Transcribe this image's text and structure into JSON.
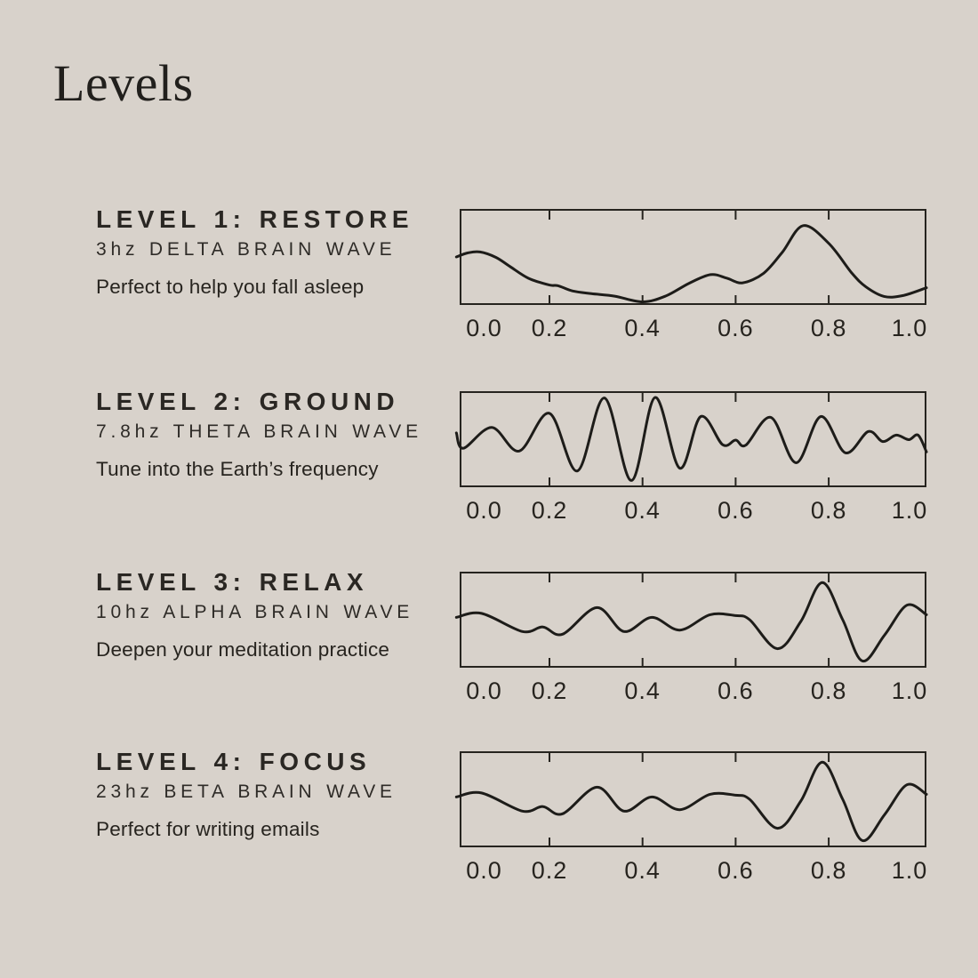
{
  "page": {
    "title": "Levels"
  },
  "theme": {
    "background": "#d8d2cb",
    "ink": "#26231f",
    "wave_color": "#1d1c19",
    "border_color": "#26241f"
  },
  "levels": [
    {
      "title": "LEVEL 1: RESTORE",
      "subtitle": "3hz DELTA BRAIN WAVE",
      "tagline": "Perfect to help you fall asleep"
    },
    {
      "title": "LEVEL 2: GROUND",
      "subtitle": "7.8hz THETA BRAIN WAVE",
      "tagline": "Tune into the Earth’s frequency"
    },
    {
      "title": "LEVEL 3: RELAX",
      "subtitle": "10hz ALPHA BRAIN WAVE",
      "tagline": "Deepen your meditation practice"
    },
    {
      "title": "LEVEL 4: FOCUS",
      "subtitle": "23hz BETA BRAIN WAVE",
      "tagline": "Perfect for writing emails"
    }
  ],
  "chart_data": [
    {
      "type": "line",
      "name": "delta-brain-wave",
      "frequency_label": "3hz",
      "xlim": [
        0,
        1.01
      ],
      "ylim": [
        0,
        1
      ],
      "grid": false,
      "tick_marks": [
        0.2,
        0.4,
        0.6,
        0.8
      ],
      "tick_label_values": [
        0.0,
        0.2,
        0.4,
        0.6,
        0.8,
        1.0
      ],
      "tick_labels": [
        "0.0",
        "0.2",
        "0.4",
        "0.6",
        "0.8",
        "1.0"
      ],
      "points": {
        "x": [
          0.0,
          0.025,
          0.051,
          0.085,
          0.115,
          0.155,
          0.2,
          0.218,
          0.25,
          0.29,
          0.34,
          0.4,
          0.45,
          0.5,
          0.546,
          0.58,
          0.615,
          0.66,
          0.7,
          0.745,
          0.8,
          0.85,
          0.88,
          0.919,
          0.96,
          1.01
        ],
        "y": [
          0.5,
          0.545,
          0.555,
          0.495,
          0.395,
          0.265,
          0.19,
          0.183,
          0.125,
          0.095,
          0.068,
          0.005,
          0.07,
          0.21,
          0.305,
          0.268,
          0.215,
          0.32,
          0.55,
          0.845,
          0.65,
          0.32,
          0.17,
          0.065,
          0.075,
          0.16
        ]
      }
    },
    {
      "type": "line",
      "name": "theta-brain-wave",
      "frequency_label": "7.8hz",
      "xlim": [
        0,
        1.01
      ],
      "ylim": [
        0,
        1
      ],
      "grid": false,
      "tick_marks": [
        0.2,
        0.4,
        0.6,
        0.8
      ],
      "tick_label_values": [
        0.0,
        0.2,
        0.4,
        0.6,
        0.8,
        1.0
      ],
      "tick_labels": [
        "0.0",
        "0.2",
        "0.4",
        "0.6",
        "0.8",
        "1.0"
      ],
      "points": {
        "x": [
          0.0,
          0.015,
          0.076,
          0.135,
          0.2,
          0.26,
          0.318,
          0.376,
          0.427,
          0.48,
          0.525,
          0.572,
          0.6,
          0.622,
          0.676,
          0.73,
          0.783,
          0.836,
          0.885,
          0.916,
          0.945,
          0.972,
          0.992,
          1.01
        ],
        "y": [
          0.57,
          0.4,
          0.63,
          0.37,
          0.785,
          0.15,
          0.955,
          0.045,
          0.96,
          0.18,
          0.75,
          0.44,
          0.49,
          0.435,
          0.74,
          0.24,
          0.75,
          0.35,
          0.585,
          0.475,
          0.545,
          0.495,
          0.545,
          0.36
        ]
      }
    },
    {
      "type": "line",
      "name": "alpha-brain-wave",
      "frequency_label": "10hz",
      "xlim": [
        0,
        1.01
      ],
      "ylim": [
        0,
        1
      ],
      "grid": false,
      "tick_marks": [
        0.2,
        0.4,
        0.6,
        0.8
      ],
      "tick_label_values": [
        0.0,
        0.2,
        0.4,
        0.6,
        0.8,
        1.0
      ],
      "tick_labels": [
        "0.0",
        "0.2",
        "0.4",
        "0.6",
        "0.8",
        "1.0"
      ],
      "points": {
        "x": [
          0.0,
          0.054,
          0.142,
          0.186,
          0.228,
          0.302,
          0.36,
          0.42,
          0.48,
          0.545,
          0.6,
          0.63,
          0.69,
          0.74,
          0.786,
          0.83,
          0.872,
          0.92,
          0.968,
          1.01
        ],
        "y": [
          0.525,
          0.57,
          0.37,
          0.42,
          0.34,
          0.633,
          0.37,
          0.525,
          0.385,
          0.555,
          0.545,
          0.5,
          0.18,
          0.48,
          0.91,
          0.5,
          0.045,
          0.33,
          0.66,
          0.555
        ]
      }
    },
    {
      "type": "line",
      "name": "beta-brain-wave",
      "frequency_label": "23hz",
      "xlim": [
        0,
        1.01
      ],
      "ylim": [
        0,
        1
      ],
      "grid": false,
      "tick_marks": [
        0.2,
        0.4,
        0.6,
        0.8
      ],
      "tick_label_values": [
        0.0,
        0.2,
        0.4,
        0.6,
        0.8,
        1.0
      ],
      "tick_labels": [
        "0.0",
        "0.2",
        "0.4",
        "0.6",
        "0.8",
        "1.0"
      ],
      "points": {
        "x": [
          0.0,
          0.054,
          0.142,
          0.186,
          0.228,
          0.302,
          0.36,
          0.42,
          0.48,
          0.545,
          0.6,
          0.63,
          0.69,
          0.74,
          0.786,
          0.83,
          0.872,
          0.92,
          0.968,
          1.01
        ],
        "y": [
          0.525,
          0.57,
          0.37,
          0.42,
          0.34,
          0.633,
          0.37,
          0.525,
          0.385,
          0.555,
          0.545,
          0.5,
          0.18,
          0.48,
          0.91,
          0.5,
          0.045,
          0.33,
          0.66,
          0.555
        ]
      }
    }
  ]
}
